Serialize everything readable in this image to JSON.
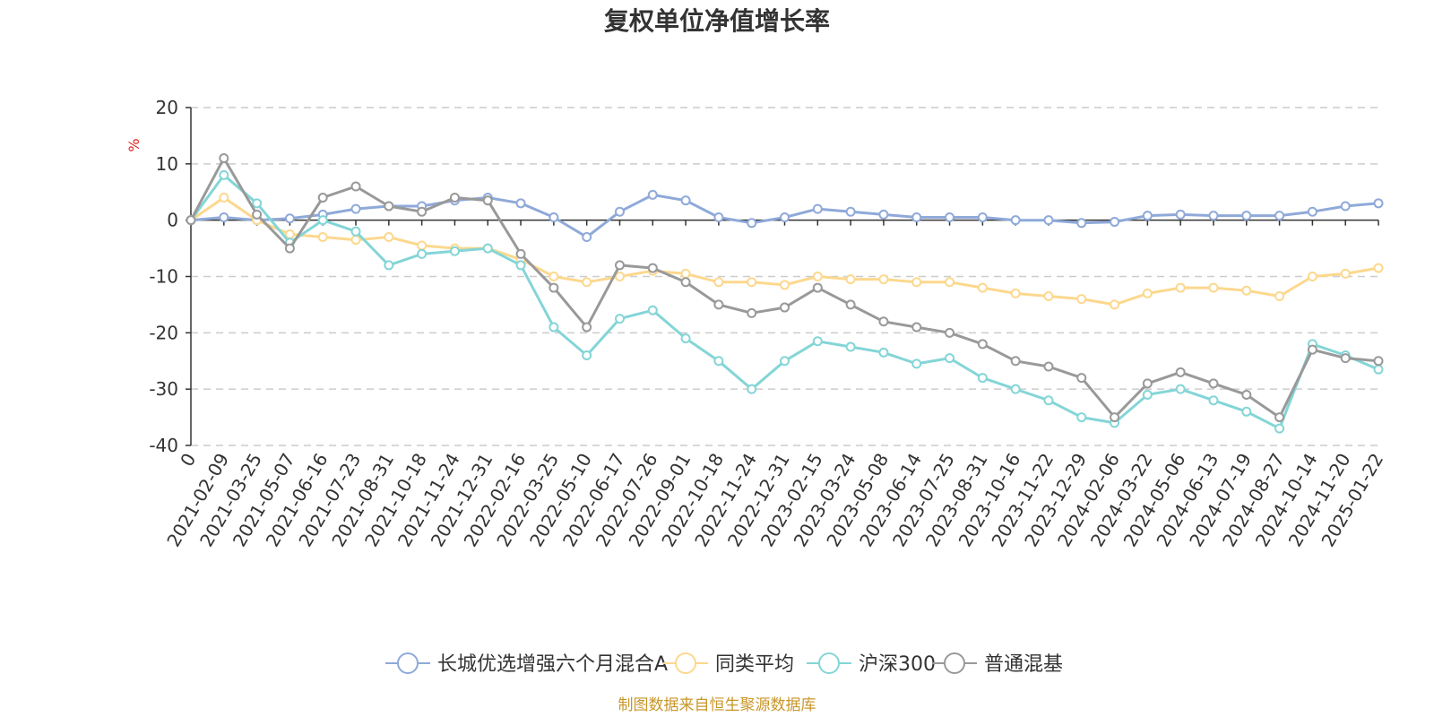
{
  "chart_data": {
    "type": "line",
    "title": "复权单位净值增长率",
    "ylabel": "%",
    "xlabel": "",
    "ylim": [
      -40,
      20
    ],
    "yticks": [
      20,
      10,
      0,
      -10,
      -20,
      -30,
      -40
    ],
    "grid": true,
    "legend_position": "bottom",
    "categories": [
      "0",
      "2021-02-09",
      "2021-03-25",
      "2021-05-07",
      "2021-06-16",
      "2021-07-23",
      "2021-08-31",
      "2021-10-18",
      "2021-11-24",
      "2021-12-31",
      "2022-02-16",
      "2022-03-25",
      "2022-05-10",
      "2022-06-17",
      "2022-07-26",
      "2022-09-01",
      "2022-10-18",
      "2022-11-24",
      "2022-12-31",
      "2023-02-15",
      "2023-03-24",
      "2023-05-08",
      "2023-06-14",
      "2023-07-25",
      "2023-08-31",
      "2023-10-16",
      "2023-11-22",
      "2023-12-29",
      "2024-02-06",
      "2024-03-22",
      "2024-05-06",
      "2024-06-13",
      "2024-07-19",
      "2024-08-27",
      "2024-10-14",
      "2024-11-20",
      "2025-01-22"
    ],
    "series": [
      {
        "name": "长城优选增强六个月混合A",
        "color": "#8fa9d9",
        "values": [
          0,
          0.5,
          0,
          0.3,
          1.0,
          2.0,
          2.5,
          2.5,
          3.5,
          4.0,
          3.0,
          0.5,
          -3.0,
          1.5,
          4.5,
          3.5,
          0.5,
          -0.5,
          0.5,
          2.0,
          1.5,
          1.0,
          0.5,
          0.5,
          0.5,
          0,
          0,
          -0.5,
          -0.3,
          0.8,
          1.0,
          0.8,
          0.8,
          0.8,
          1.5,
          2.5,
          3.0
        ]
      },
      {
        "name": "同类平均",
        "color": "#fcd88e",
        "values": [
          0,
          4.0,
          0,
          -2.5,
          -3.0,
          -3.5,
          -3.0,
          -4.5,
          -5.0,
          -5.0,
          -7.0,
          -10.0,
          -11.0,
          -10.0,
          -9.0,
          -9.5,
          -11.0,
          -11.0,
          -11.5,
          -10.0,
          -10.5,
          -10.5,
          -11.0,
          -11.0,
          -12.0,
          -13.0,
          -13.5,
          -14.0,
          -15.0,
          -13.0,
          -12.0,
          -12.0,
          -12.5,
          -13.5,
          -10.0,
          -9.5,
          -8.5
        ]
      },
      {
        "name": "沪深300",
        "color": "#84d5d7",
        "values": [
          0,
          8.0,
          3.0,
          -4.0,
          0,
          -2.0,
          -8.0,
          -6.0,
          -5.5,
          -5.0,
          -8.0,
          -19.0,
          -24.0,
          -17.5,
          -16.0,
          -21.0,
          -25.0,
          -30.0,
          -25.0,
          -21.5,
          -22.5,
          -23.5,
          -25.5,
          -24.5,
          -28.0,
          -30.0,
          -32.0,
          -35.0,
          -36.0,
          -31.0,
          -30.0,
          -32.0,
          -34.0,
          -37.0,
          -22.0,
          -24.0,
          -26.5
        ]
      },
      {
        "name": "普通混基",
        "color": "#999999",
        "values": [
          0,
          11.0,
          1.0,
          -5.0,
          4.0,
          6.0,
          2.5,
          1.5,
          4.0,
          3.5,
          -6.0,
          -12.0,
          -19.0,
          -8.0,
          -8.5,
          -11.0,
          -15.0,
          -16.5,
          -15.5,
          -12.0,
          -15.0,
          -18.0,
          -19.0,
          -20.0,
          -22.0,
          -25.0,
          -26.0,
          -28.0,
          -35.0,
          -29.0,
          -27.0,
          -29.0,
          -31.0,
          -35.0,
          -23.0,
          -24.5,
          -25.0
        ]
      }
    ]
  },
  "source_text": "制图数据来自恒生聚源数据库",
  "colors": {
    "axis": "#333333",
    "grid": "#cccccc",
    "unit": "#e02020",
    "source": "#c8962a"
  }
}
